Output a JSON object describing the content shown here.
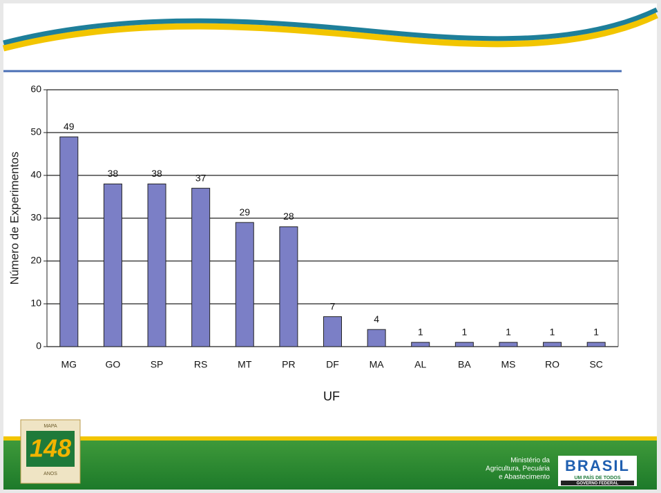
{
  "chart_data": {
    "type": "bar",
    "x_label": "UF",
    "y_label": "Número de Experimentos",
    "categories": [
      "MG",
      "GO",
      "SP",
      "RS",
      "MT",
      "PR",
      "DF",
      "MA",
      "AL",
      "BA",
      "MS",
      "RO",
      "SC"
    ],
    "values": [
      49,
      38,
      38,
      37,
      29,
      28,
      7,
      4,
      1,
      1,
      1,
      1,
      1
    ],
    "color": "#7b7fc6",
    "ylim": [
      0,
      60
    ],
    "yticks": [
      0,
      10,
      20,
      30,
      40,
      50,
      60
    ],
    "grid": true
  },
  "footer": {
    "logo_top": "MAPA",
    "logo_number": "148",
    "logo_bottom": "ANOS",
    "ministry": [
      "Ministério da",
      "Agricultura, Pecuária",
      "e Abastecimento"
    ],
    "brand": "BRASIL",
    "brand_tagline": "UM PAÍS DE TODOS",
    "brand_sub": "GOVERNO FEDERAL"
  }
}
